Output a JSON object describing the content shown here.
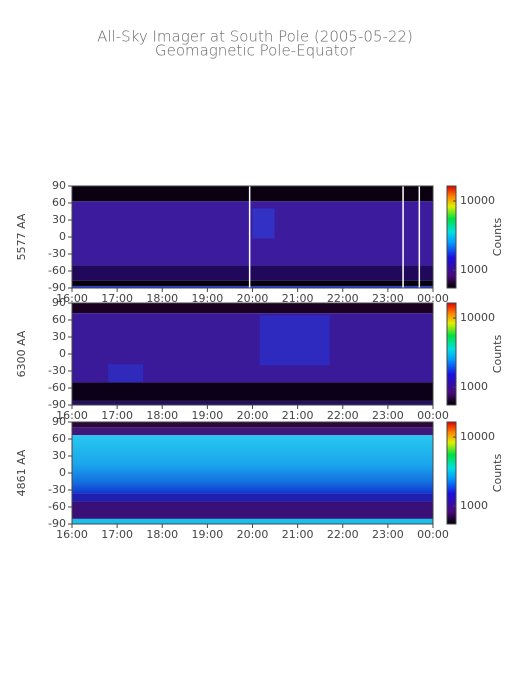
{
  "title": "All-Sky Imager at South Pole (2005-05-22)",
  "subtitle": "Geomagnetic Pole-Equator",
  "chart_data": [
    {
      "type": "heatmap",
      "ylabel": "5577 AA",
      "ylim": [
        -90,
        90
      ],
      "yticks": [
        -90,
        -60,
        -30,
        0,
        30,
        60,
        90
      ],
      "xlim": [
        16,
        24
      ],
      "xticks": [
        {
          "value": 16,
          "label": "16:00"
        },
        {
          "value": 17,
          "label": "17:00"
        },
        {
          "value": 18,
          "label": "18:00"
        },
        {
          "value": 19,
          "label": "19:00"
        },
        {
          "value": 20,
          "label": "20:00"
        },
        {
          "value": 21,
          "label": "21:00"
        },
        {
          "value": 22,
          "label": "22:00"
        },
        {
          "value": 23,
          "label": "23:00"
        },
        {
          "value": 24,
          "label": "00:00"
        }
      ],
      "colorbar": {
        "label": "Counts",
        "log": true,
        "lim": [
          550,
          16500
        ],
        "ticks": [
          1000,
          10000
        ]
      }
    },
    {
      "type": "heatmap",
      "ylabel": "6300 AA",
      "ylim": [
        -90,
        90
      ],
      "yticks": [
        -90,
        -60,
        -30,
        0,
        30,
        60,
        90
      ],
      "xlim": [
        16,
        24
      ],
      "xticks": [
        {
          "value": 16,
          "label": "16:00"
        },
        {
          "value": 17,
          "label": "17:00"
        },
        {
          "value": 18,
          "label": "18:00"
        },
        {
          "value": 19,
          "label": "19:00"
        },
        {
          "value": 20,
          "label": "20:00"
        },
        {
          "value": 21,
          "label": "21:00"
        },
        {
          "value": 22,
          "label": "22:00"
        },
        {
          "value": 23,
          "label": "23:00"
        },
        {
          "value": 24,
          "label": "00:00"
        }
      ],
      "colorbar": {
        "label": "Counts",
        "log": true,
        "lim": [
          550,
          16500
        ],
        "ticks": [
          1000,
          10000
        ]
      }
    },
    {
      "type": "heatmap",
      "ylabel": "4861 AA",
      "ylim": [
        -90,
        90
      ],
      "yticks": [
        -90,
        -60,
        -30,
        0,
        30,
        60,
        90
      ],
      "xlim": [
        16,
        24
      ],
      "xticks": [
        {
          "value": 16,
          "label": "16:00"
        },
        {
          "value": 17,
          "label": "17:00"
        },
        {
          "value": 18,
          "label": "18:00"
        },
        {
          "value": 19,
          "label": "19:00"
        },
        {
          "value": 20,
          "label": "20:00"
        },
        {
          "value": 21,
          "label": "21:00"
        },
        {
          "value": 22,
          "label": "22:00"
        },
        {
          "value": 23,
          "label": "23:00"
        },
        {
          "value": 24,
          "label": "00:00"
        }
      ],
      "colorbar": {
        "label": "Counts",
        "log": true,
        "lim": [
          550,
          16500
        ],
        "ticks": [
          1000,
          10000
        ]
      }
    }
  ]
}
